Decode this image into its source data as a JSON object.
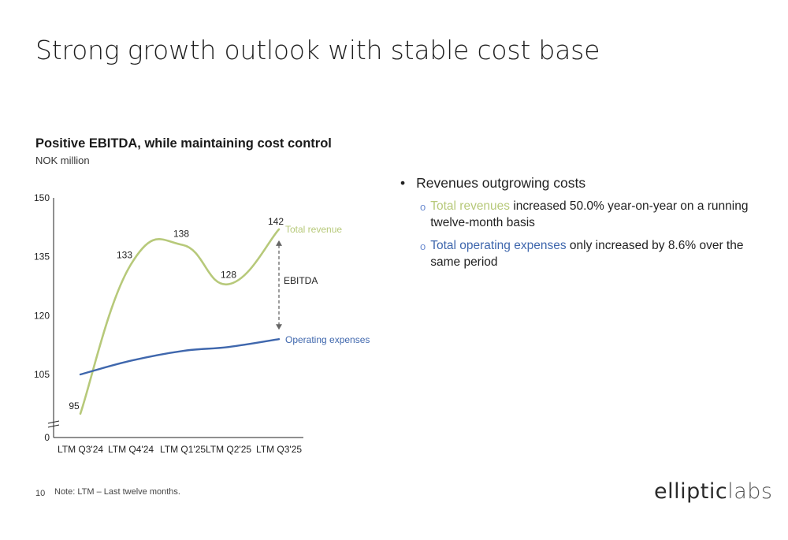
{
  "slide": {
    "title": "Strong growth outlook with stable cost base",
    "page_number": "10",
    "note": "Note: LTM – Last twelve months.",
    "logo": {
      "bold": "elliptic",
      "light": "labs"
    }
  },
  "chart_heading": "Positive EBITDA, while maintaining cost control",
  "chart_subheading": "NOK million",
  "bullets": {
    "main": "Revenues outgrowing costs",
    "marker": "•",
    "sub_marker": "o",
    "items": [
      {
        "highlight": "Total revenues",
        "rest": " increased 50.0% year-on-year on a running twelve-month basis",
        "color": "#b7c97a"
      },
      {
        "highlight": "Total operating expenses",
        "rest": " only increased by 8.6% over the same period",
        "color": "#3f67ad"
      }
    ]
  },
  "chart_data": {
    "type": "line",
    "title": "Positive EBITDA, while maintaining cost control",
    "ylabel": "NOK million",
    "categories": [
      "LTM Q3'24",
      "LTM Q4'24",
      "LTM Q1'25",
      "LTM Q2'25",
      "LTM Q3'25"
    ],
    "y_ticks": [
      "0",
      "105",
      "120",
      "135",
      "150"
    ],
    "ylim": [
      90,
      150
    ],
    "axis_break": true,
    "series": [
      {
        "name": "Total revenue",
        "color": "#b7c97a",
        "values": [
          95,
          133,
          138,
          128,
          142
        ],
        "data_labels": [
          "95",
          "133",
          "138",
          "128",
          "142"
        ]
      },
      {
        "name": "Operating expenses",
        "color": "#3f67ad",
        "values": [
          105,
          108.5,
          111,
          112,
          114
        ]
      }
    ],
    "annotation": {
      "text": "EBITDA",
      "between": [
        "Total revenue",
        "Operating expenses"
      ],
      "at": "LTM Q3'25"
    }
  }
}
